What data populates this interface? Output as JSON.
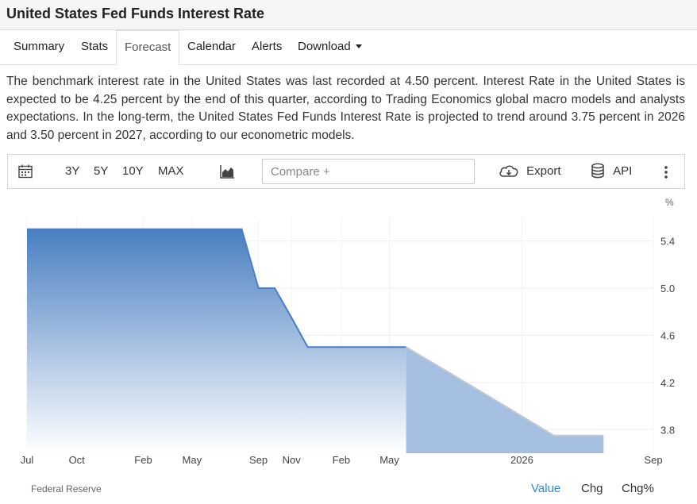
{
  "page_title": "United States Fed Funds Interest Rate",
  "tabs": [
    {
      "label": "Summary",
      "active": false
    },
    {
      "label": "Stats",
      "active": false
    },
    {
      "label": "Forecast",
      "active": true
    },
    {
      "label": "Calendar",
      "active": false
    },
    {
      "label": "Alerts",
      "active": false
    },
    {
      "label": "Download",
      "active": false
    }
  ],
  "description": "The benchmark interest rate in the United States was last recorded at 4.50 percent. Interest Rate in the United States is expected to be 4.25 percent by the end of this quarter, according to Trading Economics global macro models and analysts expectations. In the long-term, the United States Fed Funds Interest Rate is projected to trend around 3.75 percent in 2026 and 3.50 percent in 2027, according to our econometric models.",
  "toolbar": {
    "calendar_icon": "calendar-icon",
    "ranges": [
      "3Y",
      "5Y",
      "10Y",
      "MAX"
    ],
    "chart_type_icon": "area-chart-icon",
    "compare_placeholder": "Compare +",
    "export_label": "Export",
    "export_icon": "cloud-download-icon",
    "api_label": "API",
    "api_icon": "database-icon",
    "more_icon": "vertical-ellipsis-icon"
  },
  "chart_data": {
    "type": "area",
    "unit_label": "%",
    "x_tick_labels": [
      "Jul",
      "Oct",
      "Feb",
      "May",
      "Sep",
      "Nov",
      "Feb",
      "May",
      "2026",
      "Sep"
    ],
    "y_tick_labels": [
      "5.4",
      "5.0",
      "4.6",
      "4.2",
      "3.8"
    ],
    "ylim": [
      3.6,
      5.6
    ],
    "series": [
      {
        "kind": "historical",
        "color": "#4a7fc1",
        "x": [
          "2023-07",
          "2023-08",
          "2023-09",
          "2023-10",
          "2023-11",
          "2023-12",
          "2024-01",
          "2024-02",
          "2024-03",
          "2024-04",
          "2024-05",
          "2024-06",
          "2024-07",
          "2024-08",
          "2024-09",
          "2024-10",
          "2024-11",
          "2024-12",
          "2025-01",
          "2025-02",
          "2025-03",
          "2025-04",
          "2025-05",
          "2025-06"
        ],
        "values": [
          5.5,
          5.5,
          5.5,
          5.5,
          5.5,
          5.5,
          5.5,
          5.5,
          5.5,
          5.5,
          5.5,
          5.5,
          5.5,
          5.5,
          5.0,
          5.0,
          4.75,
          4.5,
          4.5,
          4.5,
          4.5,
          4.5,
          4.5,
          4.5
        ]
      },
      {
        "kind": "forecast",
        "color": "#a4bfe0",
        "x": [
          "2025-06",
          "2025-09",
          "2025-12",
          "2026-03",
          "2026-06"
        ],
        "values": [
          4.5,
          4.25,
          4.0,
          3.75,
          3.75
        ]
      }
    ],
    "grid": true
  },
  "source": "Federal Reserve",
  "bottom_tabs": [
    {
      "label": "Value",
      "active": true
    },
    {
      "label": "Chg",
      "active": false
    },
    {
      "label": "Chg%",
      "active": false
    }
  ],
  "colors": {
    "accent": "#2f8bd9",
    "area_top": "#4a7fc1",
    "area_bottom": "#ffffff",
    "forecast_fill": "#a4bfe0"
  }
}
